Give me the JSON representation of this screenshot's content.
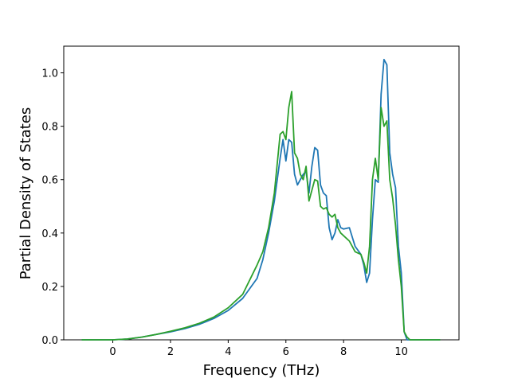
{
  "chart_data": {
    "type": "line",
    "xlabel": "Frequency (THz)",
    "ylabel": "Partial Density of States",
    "x": [
      -1.08,
      0,
      0.5,
      1,
      1.5,
      2,
      2.5,
      3,
      3.5,
      4,
      4.5,
      5,
      5.2,
      5.4,
      5.6,
      5.8,
      5.9,
      6.0,
      6.1,
      6.2,
      6.3,
      6.4,
      6.5,
      6.6,
      6.7,
      6.8,
      6.9,
      7.0,
      7.1,
      7.2,
      7.3,
      7.4,
      7.5,
      7.6,
      7.7,
      7.8,
      7.9,
      8.0,
      8.2,
      8.4,
      8.6,
      8.7,
      8.8,
      8.9,
      9.0,
      9.1,
      9.2,
      9.3,
      9.4,
      9.5,
      9.6,
      9.7,
      9.8,
      9.9,
      10.0,
      10.1,
      10.2,
      10.3,
      10.4,
      11.35
    ],
    "series": [
      {
        "color": "#1f77b4",
        "values": [
          0,
          0,
          0.003,
          0.01,
          0.02,
          0.03,
          0.042,
          0.058,
          0.08,
          0.11,
          0.155,
          0.23,
          0.3,
          0.4,
          0.52,
          0.68,
          0.75,
          0.67,
          0.75,
          0.74,
          0.62,
          0.58,
          0.6,
          0.62,
          0.63,
          0.55,
          0.65,
          0.72,
          0.71,
          0.58,
          0.55,
          0.54,
          0.42,
          0.375,
          0.4,
          0.45,
          0.42,
          0.415,
          0.42,
          0.35,
          0.32,
          0.28,
          0.215,
          0.25,
          0.45,
          0.6,
          0.59,
          0.92,
          1.05,
          1.03,
          0.7,
          0.62,
          0.57,
          0.35,
          0.25,
          0.03,
          0.0,
          0,
          0,
          0
        ]
      },
      {
        "color": "#2ca02c",
        "values": [
          0,
          0,
          0.003,
          0.01,
          0.02,
          0.032,
          0.045,
          0.062,
          0.085,
          0.12,
          0.17,
          0.28,
          0.33,
          0.42,
          0.55,
          0.77,
          0.78,
          0.75,
          0.87,
          0.93,
          0.7,
          0.68,
          0.62,
          0.6,
          0.65,
          0.52,
          0.56,
          0.6,
          0.595,
          0.5,
          0.49,
          0.495,
          0.47,
          0.46,
          0.47,
          0.42,
          0.4,
          0.39,
          0.37,
          0.33,
          0.32,
          0.29,
          0.25,
          0.35,
          0.6,
          0.68,
          0.6,
          0.87,
          0.8,
          0.82,
          0.6,
          0.53,
          0.43,
          0.3,
          0.2,
          0.03,
          0.01,
          0,
          0,
          0
        ]
      }
    ],
    "xlim": [
      -1.7,
      12.0
    ],
    "ylim": [
      0,
      1.1
    ],
    "xticks": [
      0,
      2,
      4,
      6,
      8,
      10
    ],
    "yticks": [
      {
        "value": 0,
        "label": "0.0"
      },
      0.2,
      0.4,
      0.6,
      0.8,
      {
        "value": 1,
        "label": "1.0"
      }
    ],
    "grid": false
  }
}
